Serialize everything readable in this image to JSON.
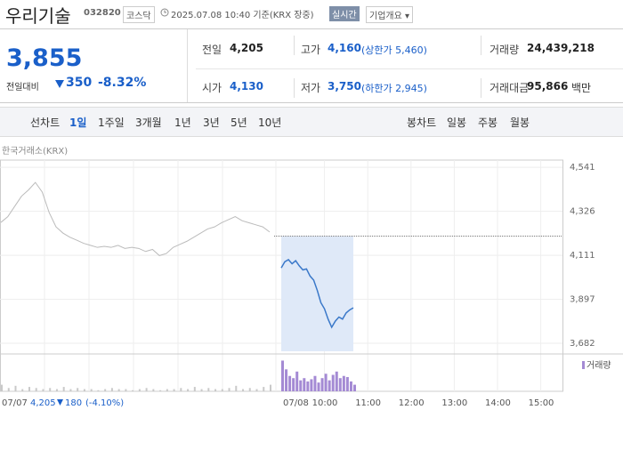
{
  "header": {
    "name": "우리기술",
    "code": "032820",
    "market": "코스닥",
    "datetime": "2025.07.08 10:40 기준(KRX 장중)",
    "realtime": "실시간",
    "company_info": "기업개요"
  },
  "price": {
    "current": "3,855",
    "change_label": "전일대비",
    "change": "350",
    "change_rate": "-8.32%"
  },
  "stats": [
    [
      {
        "label": "전일",
        "value": "4,205"
      },
      {
        "label": "고가",
        "value": "4,160",
        "note": "(상한가 5,460)"
      },
      {
        "label": "거래량",
        "value": "24,439,218"
      }
    ],
    [
      {
        "label": "시가",
        "value": "4,130"
      },
      {
        "label": "저가",
        "value": "3,750",
        "note": "(하한가 2,945)"
      },
      {
        "label": "거래대금",
        "value": "95,866",
        "unit": "백만"
      }
    ]
  ],
  "tabs": {
    "line_chart": "선차트",
    "periods": [
      "1일",
      "1주일",
      "3개월",
      "1년",
      "3년",
      "5년",
      "10년"
    ],
    "candle_chart": "봉차트",
    "candle_periods": [
      "일봉",
      "주봉",
      "월봉"
    ]
  },
  "chart_data": {
    "type": "line",
    "source": "한국거래소(KRX)",
    "ylim": [
      3643,
      4576
    ],
    "yticks": [
      {
        "value": 4541,
        "label": "4,541"
      },
      {
        "value": 4326,
        "label": "4,326"
      },
      {
        "value": 4111,
        "label": "4,111"
      },
      {
        "value": 3897,
        "label": "3,897"
      },
      {
        "value": 3682,
        "label": "3,682"
      }
    ],
    "prev_close": 4205,
    "series": [
      {
        "name": "07/07",
        "color": "#bbbbbb",
        "values": [
          4272,
          4300,
          4350,
          4400,
          4430,
          4467,
          4420,
          4320,
          4250,
          4220,
          4200,
          4185,
          4170,
          4160,
          4150,
          4155,
          4150,
          4160,
          4145,
          4150,
          4145,
          4130,
          4140,
          4110,
          4120,
          4150,
          4165,
          4180,
          4200,
          4220,
          4240,
          4250,
          4270,
          4285,
          4300,
          4280,
          4270,
          4260,
          4250,
          4225
        ]
      },
      {
        "name": "07/08",
        "color": "#3a78c9",
        "values": [
          4050,
          4080,
          4090,
          4070,
          4085,
          4060,
          4040,
          4045,
          4010,
          3990,
          3940,
          3880,
          3850,
          3800,
          3760,
          3790,
          3810,
          3800,
          3830,
          3845,
          3855
        ]
      }
    ],
    "prev_summary": {
      "close": "4,205",
      "change": "180",
      "rate": "(-4.10%)"
    },
    "xtick_labels": [
      "10:00",
      "11:00",
      "12:00",
      "13:00",
      "14:00",
      "15:00"
    ],
    "volume": {
      "name": "거래량",
      "color": "#a48ad4",
      "ylim": [
        0,
        30
      ],
      "prev": [
        6,
        3,
        5,
        2,
        4,
        3,
        2,
        3,
        2,
        4,
        2,
        3,
        2,
        2,
        1,
        2,
        3,
        2,
        2,
        1,
        2,
        3,
        2,
        1,
        2,
        2,
        3,
        2,
        4,
        2,
        3,
        2,
        2,
        3,
        5,
        2,
        3,
        2,
        4,
        6
      ],
      "today": [
        28,
        20,
        14,
        12,
        18,
        10,
        12,
        9,
        11,
        14,
        8,
        12,
        16,
        10,
        15,
        18,
        12,
        14,
        13,
        9,
        6
      ]
    }
  }
}
